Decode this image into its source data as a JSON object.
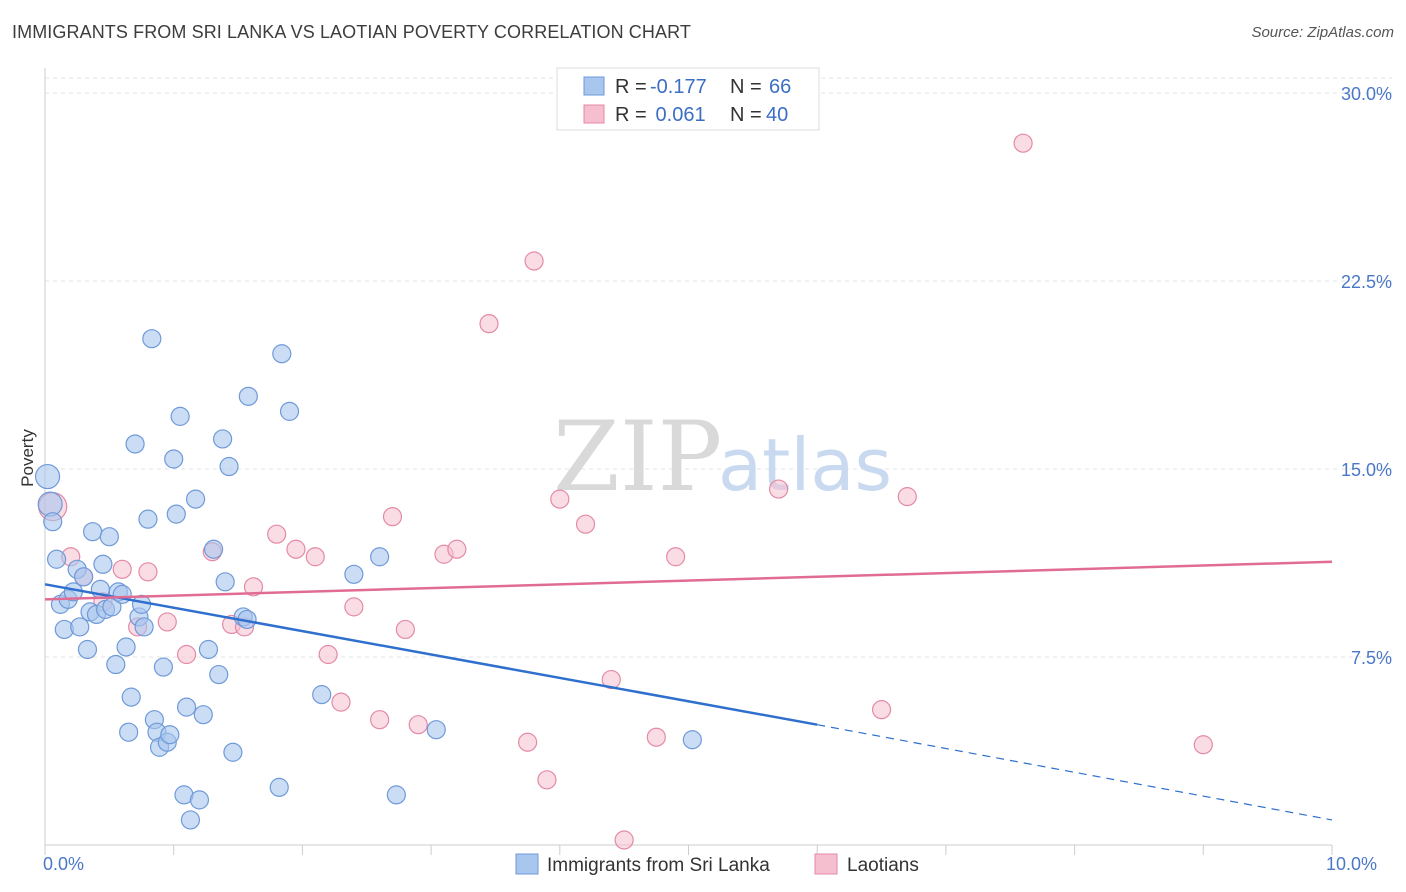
{
  "header": {
    "title": "IMMIGRANTS FROM SRI LANKA VS LAOTIAN POVERTY CORRELATION CHART",
    "source": "Source: ZipAtlas.com"
  },
  "watermark": {
    "zip": "ZIP",
    "atlas": "atlas"
  },
  "legend": {
    "rows": [
      {
        "r_label": "R =",
        "r_value": "-0.177",
        "n_label": "N =",
        "n_value": "66"
      },
      {
        "r_label": "R =",
        "r_value": " 0.061",
        "n_label": "N =",
        "n_value": "40"
      }
    ]
  },
  "bottom_legend": {
    "series1": "Immigrants from Sri Lanka",
    "series2": "Laotians"
  },
  "chart_data": {
    "type": "scatter",
    "title": "IMMIGRANTS FROM SRI LANKA VS LAOTIAN POVERTY CORRELATION CHART",
    "xlabel": "",
    "ylabel": "Poverty",
    "xlim": [
      0,
      10
    ],
    "ylim": [
      0,
      31
    ],
    "x_tick_labels": [
      "0.0%",
      "10.0%"
    ],
    "y_ticks": [
      7.5,
      15.0,
      22.5,
      30.0
    ],
    "y_tick_labels": [
      "7.5%",
      "15.0%",
      "22.5%",
      "30.0%"
    ],
    "grid": true,
    "legend_position": "top-center",
    "colors": {
      "series1_fill": "#a9c6ee",
      "series1_stroke": "#6f9ad8",
      "series1_line": "#2f6fce",
      "series2_fill": "#f6bfd0",
      "series2_stroke": "#e48aa6",
      "series2_line": "#e06c93"
    },
    "series": [
      {
        "name": "Immigrants from Sri Lanka",
        "trend": {
          "x0": 0.0,
          "y0": 10.4,
          "x1": 6.0,
          "y1": 4.8,
          "dash_x1": 10.0,
          "dash_y1": 1.0
        },
        "points": [
          [
            0.02,
            14.7
          ],
          [
            0.04,
            13.6
          ],
          [
            0.06,
            12.9
          ],
          [
            0.09,
            11.4
          ],
          [
            0.12,
            9.6
          ],
          [
            0.15,
            8.6
          ],
          [
            0.18,
            9.8
          ],
          [
            0.22,
            10.1
          ],
          [
            0.25,
            11.0
          ],
          [
            0.27,
            8.7
          ],
          [
            0.3,
            10.7
          ],
          [
            0.33,
            7.8
          ],
          [
            0.35,
            9.3
          ],
          [
            0.37,
            12.5
          ],
          [
            0.4,
            9.2
          ],
          [
            0.43,
            10.2
          ],
          [
            0.45,
            11.2
          ],
          [
            0.47,
            9.4
          ],
          [
            0.5,
            12.3
          ],
          [
            0.52,
            9.5
          ],
          [
            0.55,
            7.2
          ],
          [
            0.57,
            10.1
          ],
          [
            0.6,
            10.0
          ],
          [
            0.63,
            7.9
          ],
          [
            0.65,
            4.5
          ],
          [
            0.67,
            5.9
          ],
          [
            0.7,
            16.0
          ],
          [
            0.73,
            9.1
          ],
          [
            0.75,
            9.6
          ],
          [
            0.77,
            8.7
          ],
          [
            0.8,
            13.0
          ],
          [
            0.83,
            20.2
          ],
          [
            0.85,
            5.0
          ],
          [
            0.87,
            4.5
          ],
          [
            0.89,
            3.9
          ],
          [
            0.92,
            7.1
          ],
          [
            0.95,
            4.1
          ],
          [
            0.97,
            4.4
          ],
          [
            1.0,
            15.4
          ],
          [
            1.02,
            13.2
          ],
          [
            1.05,
            17.1
          ],
          [
            1.08,
            2.0
          ],
          [
            1.1,
            5.5
          ],
          [
            1.13,
            1.0
          ],
          [
            1.17,
            13.8
          ],
          [
            1.2,
            1.8
          ],
          [
            1.23,
            5.2
          ],
          [
            1.27,
            7.8
          ],
          [
            1.31,
            11.8
          ],
          [
            1.35,
            6.8
          ],
          [
            1.38,
            16.2
          ],
          [
            1.4,
            10.5
          ],
          [
            1.43,
            15.1
          ],
          [
            1.46,
            3.7
          ],
          [
            1.54,
            9.1
          ],
          [
            1.57,
            9.0
          ],
          [
            1.58,
            17.9
          ],
          [
            1.84,
            19.6
          ],
          [
            1.9,
            17.3
          ],
          [
            2.15,
            6.0
          ],
          [
            2.4,
            10.8
          ],
          [
            2.6,
            11.5
          ],
          [
            2.73,
            2.0
          ],
          [
            3.04,
            4.6
          ],
          [
            5.03,
            4.2
          ],
          [
            1.82,
            2.3
          ]
        ]
      },
      {
        "name": "Laotians",
        "trend": {
          "x0": 0.0,
          "y0": 9.8,
          "x1": 10.0,
          "y1": 11.3
        },
        "points": [
          [
            0.06,
            13.5
          ],
          [
            0.2,
            11.5
          ],
          [
            0.3,
            10.7
          ],
          [
            0.45,
            9.7
          ],
          [
            0.6,
            11.0
          ],
          [
            0.72,
            8.7
          ],
          [
            0.8,
            10.9
          ],
          [
            0.95,
            8.9
          ],
          [
            1.1,
            7.6
          ],
          [
            1.3,
            11.7
          ],
          [
            1.45,
            8.8
          ],
          [
            1.55,
            8.7
          ],
          [
            1.62,
            10.3
          ],
          [
            1.8,
            12.4
          ],
          [
            1.95,
            11.8
          ],
          [
            2.1,
            11.5
          ],
          [
            2.2,
            7.6
          ],
          [
            2.3,
            5.7
          ],
          [
            2.4,
            9.5
          ],
          [
            2.6,
            5.0
          ],
          [
            2.7,
            13.1
          ],
          [
            2.8,
            8.6
          ],
          [
            2.9,
            4.8
          ],
          [
            3.1,
            11.6
          ],
          [
            3.2,
            11.8
          ],
          [
            3.45,
            20.8
          ],
          [
            3.75,
            4.1
          ],
          [
            3.8,
            23.3
          ],
          [
            3.9,
            2.6
          ],
          [
            4.0,
            13.8
          ],
          [
            4.2,
            12.8
          ],
          [
            4.4,
            6.6
          ],
          [
            4.5,
            0.2
          ],
          [
            4.75,
            4.3
          ],
          [
            4.9,
            11.5
          ],
          [
            5.7,
            14.2
          ],
          [
            6.5,
            5.4
          ],
          [
            6.7,
            13.9
          ],
          [
            7.6,
            28.0
          ],
          [
            9.0,
            4.0
          ]
        ]
      }
    ]
  }
}
